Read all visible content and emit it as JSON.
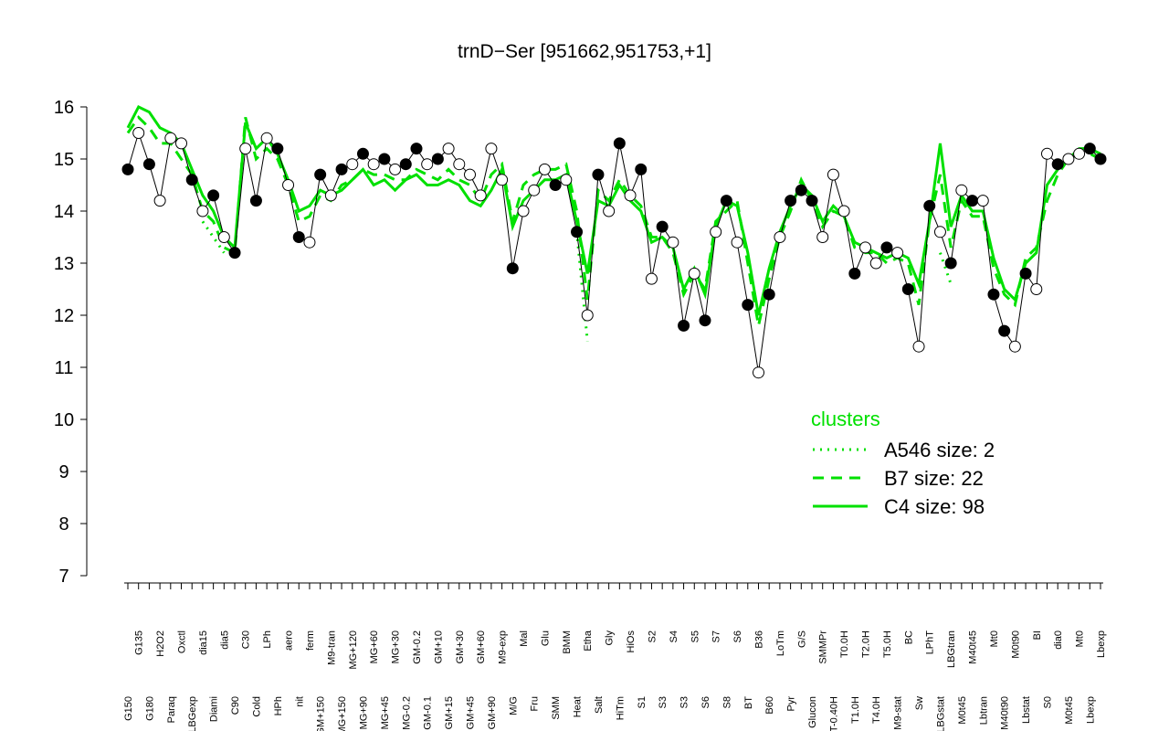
{
  "chart_data": {
    "type": "line",
    "title": "trnD−Ser [951662,951753,+1]",
    "ylim": [
      7,
      16
    ],
    "yticks": [
      7,
      8,
      9,
      10,
      11,
      12,
      13,
      14,
      15,
      16
    ],
    "categories": [
      "G150",
      "G135",
      "G180",
      "H2O2",
      "Paraq",
      "Oxctl",
      "LBGexp",
      "dia15",
      "Diami",
      "dia5",
      "C90",
      "C30",
      "Cold",
      "LPh",
      "HPh",
      "aero",
      "nit",
      "ferm",
      "GM+150",
      "M9-tran",
      "MG+150",
      "MG+120",
      "MG+90",
      "MG+60",
      "MG+45",
      "MG+30",
      "MG-0.2",
      "GM-0.2",
      "GM-0.1",
      "GM+10",
      "GM+15",
      "GM+30",
      "GM+45",
      "GM+60",
      "GM+90",
      "M9-exp",
      "M/G",
      "Mal",
      "Fru",
      "Glu",
      "SMM",
      "BMM",
      "Heat",
      "Etha",
      "Salt",
      "Gly",
      "HiTm",
      "HiOs",
      "S1",
      "S2",
      "S3",
      "S4",
      "S3",
      "S5",
      "S6",
      "S7",
      "S8",
      "S6",
      "BT",
      "B36",
      "B60",
      "LoTm",
      "Pyr",
      "G/S",
      "Glucon",
      "SMMPr",
      "T-0.40H",
      "T0.0H",
      "T1.0H",
      "T2.0H",
      "T4.0H",
      "T5.0H",
      "M9-stat",
      "BC",
      "Sw",
      "LPhT",
      "LBGstat",
      "LBGtran",
      "M0t45",
      "M40t45",
      "Lbtran",
      "Mt0",
      "M40t90",
      "M0t90",
      "Lbstat",
      "BI",
      "S0",
      "dia0",
      "M0t45",
      "Mt0",
      "Lbexp",
      "Lbexp"
    ],
    "points": {
      "values": [
        14.8,
        15.5,
        14.9,
        14.2,
        15.4,
        15.3,
        14.6,
        14.0,
        14.3,
        13.5,
        13.2,
        15.2,
        14.2,
        15.4,
        15.2,
        14.5,
        13.5,
        13.4,
        14.7,
        14.3,
        14.8,
        14.9,
        15.1,
        14.9,
        15.0,
        14.8,
        14.9,
        15.2,
        14.9,
        15.0,
        15.2,
        14.9,
        14.7,
        14.3,
        15.2,
        14.6,
        12.9,
        14.0,
        14.4,
        14.8,
        14.5,
        14.6,
        13.6,
        12.0,
        14.7,
        14.0,
        15.3,
        14.3,
        14.8,
        12.7,
        13.7,
        13.4,
        11.8,
        12.8,
        11.9,
        13.6,
        14.2,
        13.4,
        12.2,
        10.9,
        12.4,
        13.5,
        14.2,
        14.4,
        14.2,
        13.5,
        14.7,
        14.0,
        12.8,
        13.3,
        13.0,
        13.3,
        13.2,
        12.5,
        11.4,
        14.1,
        13.6,
        13.0,
        14.4,
        14.2,
        14.2,
        12.4,
        11.7,
        11.4,
        12.8,
        12.5,
        15.1,
        14.9,
        15.0,
        15.1,
        15.2,
        15.0
      ],
      "fills": [
        "#000",
        "#fff",
        "#000",
        "#fff",
        "#fff",
        "#fff",
        "#000",
        "#fff",
        "#000",
        "#fff",
        "#000",
        "#fff",
        "#000",
        "#fff",
        "#000",
        "#fff",
        "#000",
        "#fff",
        "#000",
        "#fff",
        "#000",
        "#fff",
        "#000",
        "#fff",
        "#000",
        "#fff",
        "#000",
        "#000",
        "#fff",
        "#000",
        "#fff",
        "#fff",
        "#fff",
        "#fff",
        "#fff",
        "#fff",
        "#000",
        "#fff",
        "#fff",
        "#fff",
        "#000",
        "#fff",
        "#000",
        "#fff",
        "#000",
        "#fff",
        "#000",
        "#fff",
        "#000",
        "#fff",
        "#000",
        "#fff",
        "#000",
        "#fff",
        "#000",
        "#fff",
        "#000",
        "#fff",
        "#000",
        "#fff",
        "#000",
        "#fff",
        "#000",
        "#000",
        "#000",
        "#fff",
        "#fff",
        "#fff",
        "#000",
        "#fff",
        "#fff",
        "#000",
        "#fff",
        "#000",
        "#fff",
        "#000",
        "#fff",
        "#000",
        "#fff",
        "#000",
        "#fff",
        "#000",
        "#000",
        "#fff",
        "#000",
        "#fff",
        "#fff",
        "#000",
        "#fff",
        "#fff",
        "#000",
        "#000"
      ]
    },
    "legend_title": "clusters",
    "legend_color": "#00e000",
    "series": [
      {
        "name": "A546 size: 2",
        "color": "#00e000",
        "dash": "2,6",
        "values": [
          null,
          null,
          null,
          null,
          null,
          null,
          null,
          13.8,
          13.5,
          13.2,
          null,
          null,
          null,
          null,
          null,
          null,
          null,
          null,
          null,
          null,
          null,
          null,
          null,
          null,
          null,
          null,
          null,
          null,
          null,
          null,
          null,
          null,
          null,
          null,
          null,
          null,
          null,
          null,
          null,
          null,
          null,
          null,
          13.6,
          11.5,
          null,
          null,
          null,
          null,
          null,
          null,
          null,
          null,
          null,
          null,
          null,
          null,
          null,
          null,
          null,
          null,
          null,
          null,
          null,
          null,
          null,
          null,
          null,
          null,
          null,
          null,
          null,
          null,
          null,
          null,
          null,
          null,
          13.2,
          12.6,
          null,
          null,
          null,
          null,
          null,
          null,
          null,
          null,
          null,
          null,
          null,
          null,
          null,
          null
        ]
      },
      {
        "name": "B7 size: 22",
        "color": "#00e000",
        "dash": "12,8",
        "values": [
          15.5,
          15.8,
          15.6,
          15.3,
          15.3,
          15.0,
          14.7,
          14.0,
          13.8,
          13.3,
          13.2,
          15.8,
          15.0,
          15.2,
          15.0,
          14.5,
          13.8,
          13.9,
          14.3,
          14.2,
          14.5,
          14.6,
          14.8,
          14.7,
          14.7,
          14.6,
          14.6,
          14.8,
          14.7,
          14.6,
          14.8,
          14.6,
          14.5,
          14.2,
          14.7,
          14.9,
          13.8,
          14.5,
          14.7,
          14.8,
          14.8,
          14.9,
          14.0,
          12.3,
          14.4,
          14.2,
          14.6,
          14.3,
          14.1,
          13.5,
          13.5,
          13.2,
          12.4,
          12.8,
          12.5,
          13.8,
          14.0,
          14.2,
          13.0,
          11.8,
          12.7,
          13.5,
          14.0,
          14.6,
          14.2,
          13.7,
          14.0,
          13.9,
          13.3,
          13.2,
          13.2,
          13.0,
          13.1,
          13.0,
          12.2,
          13.8,
          14.7,
          13.3,
          14.2,
          13.9,
          13.9,
          12.9,
          12.4,
          12.2,
          13.1,
          13.3,
          14.2,
          14.7,
          15.0,
          15.1,
          15.1,
          15.0
        ]
      },
      {
        "name": "C4 size: 98",
        "color": "#00e000",
        "dash": "none",
        "values": [
          15.6,
          16.0,
          15.9,
          15.6,
          15.5,
          15.3,
          14.8,
          14.3,
          14.0,
          13.5,
          13.3,
          15.7,
          15.2,
          15.4,
          15.1,
          14.6,
          14.0,
          14.1,
          14.4,
          14.3,
          14.4,
          14.6,
          14.8,
          14.5,
          14.6,
          14.4,
          14.6,
          14.7,
          14.5,
          14.5,
          14.6,
          14.5,
          14.2,
          14.1,
          14.4,
          14.8,
          13.7,
          14.2,
          14.4,
          14.6,
          14.6,
          14.7,
          13.8,
          12.8,
          14.2,
          14.1,
          14.5,
          14.2,
          14.0,
          13.4,
          13.5,
          13.3,
          12.5,
          12.9,
          12.4,
          13.7,
          14.2,
          14.1,
          13.2,
          12.0,
          12.9,
          13.6,
          14.1,
          14.5,
          14.3,
          13.8,
          14.1,
          13.9,
          13.4,
          13.3,
          13.2,
          13.1,
          13.2,
          13.1,
          12.6,
          13.8,
          15.3,
          13.7,
          14.3,
          14.0,
          14.0,
          13.1,
          12.5,
          12.3,
          13.0,
          13.2,
          14.5,
          14.8,
          15.0,
          15.2,
          15.2,
          15.1
        ]
      }
    ]
  }
}
